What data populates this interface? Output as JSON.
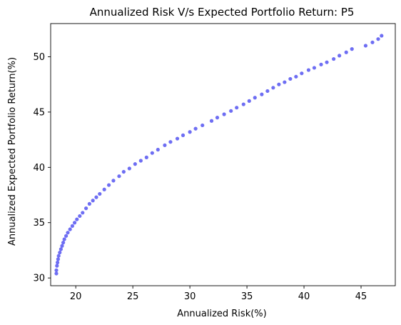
{
  "chart_data": {
    "type": "scatter",
    "title": "Annualized Risk V/s Expected Portfolio Return: P5",
    "xlabel": "Annualized Risk(%)",
    "ylabel": "Annualized Expected Portfolio Return(%)",
    "xlim": [
      17.8,
      48.0
    ],
    "ylim": [
      29.3,
      53.0
    ],
    "xticks": [
      20,
      25,
      30,
      35,
      40,
      45
    ],
    "yticks": [
      30,
      35,
      40,
      45,
      50
    ],
    "grid": false,
    "legend": "none",
    "marker_color": "#4a4af0",
    "series": [
      {
        "x": [
          18.3,
          18.3,
          18.35,
          18.4,
          18.45,
          18.5,
          18.6,
          18.7,
          18.8,
          18.9,
          19.0,
          19.15,
          19.3,
          19.5,
          19.7,
          19.9,
          20.1,
          20.35,
          20.6,
          20.9,
          21.2,
          21.5,
          21.8,
          22.1,
          22.5,
          22.9,
          23.3,
          23.8,
          24.2,
          24.7,
          25.2,
          25.7,
          26.2,
          26.7,
          27.2,
          27.8,
          28.3,
          28.9,
          29.4,
          30.0,
          30.5,
          31.1,
          31.9,
          32.4,
          33.0,
          33.6,
          34.1,
          34.7,
          35.2,
          35.7,
          36.3,
          36.8,
          37.3,
          37.8,
          38.3,
          38.8,
          39.3,
          39.8,
          40.4,
          40.9,
          41.5,
          42.0,
          42.6,
          43.1,
          43.7,
          44.2,
          45.4,
          46.0,
          46.5,
          46.8
        ],
        "y": [
          30.4,
          30.7,
          31.1,
          31.4,
          31.7,
          32.0,
          32.3,
          32.6,
          32.9,
          33.2,
          33.5,
          33.8,
          34.1,
          34.4,
          34.7,
          35.0,
          35.3,
          35.6,
          35.9,
          36.3,
          36.7,
          37.0,
          37.3,
          37.6,
          38.0,
          38.4,
          38.8,
          39.2,
          39.6,
          39.9,
          40.3,
          40.6,
          40.9,
          41.3,
          41.6,
          42.0,
          42.3,
          42.6,
          42.9,
          43.2,
          43.5,
          43.8,
          44.2,
          44.5,
          44.8,
          45.1,
          45.4,
          45.7,
          46.0,
          46.3,
          46.6,
          46.9,
          47.2,
          47.5,
          47.7,
          48.0,
          48.2,
          48.5,
          48.8,
          49.0,
          49.3,
          49.5,
          49.8,
          50.1,
          50.4,
          50.7,
          51.0,
          51.3,
          51.6,
          51.9
        ]
      }
    ]
  }
}
